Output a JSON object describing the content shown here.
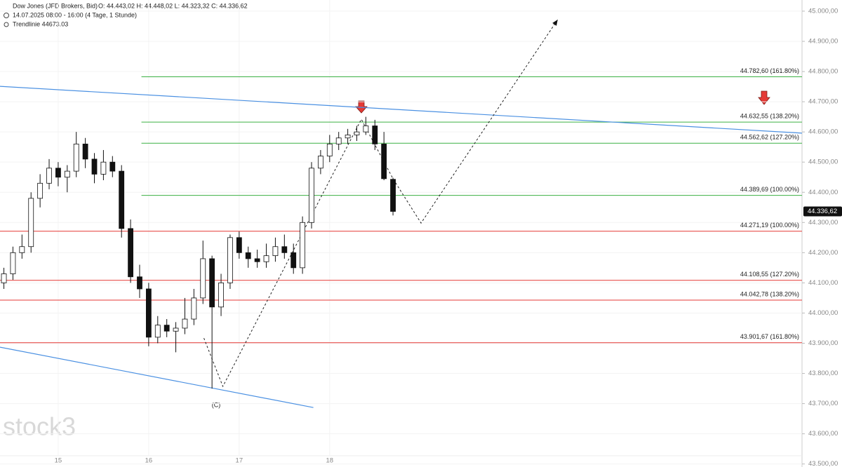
{
  "chart_data": {
    "type": "candlestick",
    "instrument": "Dow Jones (JFD Brokers, Bid)",
    "ohlc_text": "O: 44.443,02  H: 44.448,02  L: 44.323,32  C: 44.336,62",
    "range_text": "14.07.2025 08:00 - 16:00  (4 Tage, 1 Stunde)",
    "trendline_text": "Trendlinie  44673.03",
    "watermark": "stock3",
    "annotation": "(C)",
    "xlim": [
      14.357,
      23.22
    ],
    "xticks": [
      15,
      16,
      17,
      18
    ],
    "ylim": [
      43490,
      45037
    ],
    "yticks": [
      {
        "value": 45000,
        "label": "45.000,00"
      },
      {
        "value": 44900,
        "label": "44.900,00"
      },
      {
        "value": 44800,
        "label": "44.800,00"
      },
      {
        "value": 44700,
        "label": "44.700,00"
      },
      {
        "value": 44600,
        "label": "44.600,00"
      },
      {
        "value": 44500,
        "label": "44.500,00"
      },
      {
        "value": 44400,
        "label": "44.400,00"
      },
      {
        "value": 44300,
        "label": "44.300,00"
      },
      {
        "value": 44200,
        "label": "44.200,00"
      },
      {
        "value": 44100,
        "label": "44.100,00"
      },
      {
        "value": 44000,
        "label": "44.000,00"
      },
      {
        "value": 43900,
        "label": "43.900,00"
      },
      {
        "value": 43800,
        "label": "43.800,00"
      },
      {
        "value": 43700,
        "label": "43.700,00"
      },
      {
        "value": 43600,
        "label": "43.600,00"
      },
      {
        "value": 43500,
        "label": "43.500,00"
      }
    ],
    "x": [
      14.4,
      14.5,
      14.6,
      14.7,
      14.8,
      14.9,
      15.0,
      15.1,
      15.2,
      15.3,
      15.4,
      15.5,
      15.6,
      15.7,
      15.8,
      15.9,
      16.0,
      16.1,
      16.2,
      16.3,
      16.4,
      16.5,
      16.6,
      16.7,
      16.8,
      16.9,
      17.0,
      17.1,
      17.2,
      17.3,
      17.4,
      17.5,
      17.6,
      17.7,
      17.8,
      17.9,
      18.0,
      18.1,
      18.2,
      18.3,
      18.4,
      18.5,
      18.6,
      18.7
    ],
    "candles": [
      [
        44100,
        44150,
        44080,
        44130
      ],
      [
        44130,
        44220,
        44110,
        44200
      ],
      [
        44200,
        44260,
        44180,
        44220
      ],
      [
        44220,
        44400,
        44200,
        44380
      ],
      [
        44380,
        44460,
        44350,
        44430
      ],
      [
        44430,
        44510,
        44410,
        44480
      ],
      [
        44480,
        44500,
        44420,
        44450
      ],
      [
        44450,
        44490,
        44400,
        44470
      ],
      [
        44470,
        44600,
        44450,
        44560
      ],
      [
        44560,
        44580,
        44480,
        44510
      ],
      [
        44510,
        44530,
        44430,
        44460
      ],
      [
        44460,
        44540,
        44440,
        44500
      ],
      [
        44500,
        44520,
        44450,
        44470
      ],
      [
        44470,
        44490,
        44250,
        44280
      ],
      [
        44280,
        44310,
        44100,
        44120
      ],
      [
        44120,
        44160,
        44050,
        44080
      ],
      [
        44080,
        44100,
        43890,
        43920
      ],
      [
        43920,
        43990,
        43900,
        43960
      ],
      [
        43960,
        43980,
        43920,
        43940
      ],
      [
        43940,
        43970,
        43870,
        43950
      ],
      [
        43950,
        44050,
        43930,
        43980
      ],
      [
        43980,
        44080,
        43960,
        44050
      ],
      [
        44050,
        44240,
        44030,
        44180
      ],
      [
        44180,
        44190,
        43750,
        44020
      ],
      [
        44020,
        44130,
        43990,
        44100
      ],
      [
        44100,
        44260,
        44080,
        44250
      ],
      [
        44250,
        44270,
        44180,
        44200
      ],
      [
        44200,
        44220,
        44150,
        44180
      ],
      [
        44180,
        44210,
        44150,
        44170
      ],
      [
        44170,
        44230,
        44150,
        44190
      ],
      [
        44190,
        44250,
        44170,
        44220
      ],
      [
        44220,
        44260,
        44180,
        44200
      ],
      [
        44200,
        44230,
        44130,
        44150
      ],
      [
        44150,
        44320,
        44130,
        44300
      ],
      [
        44300,
        44500,
        44280,
        44480
      ],
      [
        44480,
        44540,
        44460,
        44520
      ],
      [
        44520,
        44590,
        44500,
        44560
      ],
      [
        44560,
        44600,
        44540,
        44580
      ],
      [
        44580,
        44610,
        44560,
        44590
      ],
      [
        44590,
        44620,
        44570,
        44600
      ],
      [
        44600,
        44650,
        44590,
        44620
      ],
      [
        44620,
        44640,
        44540,
        44560
      ],
      [
        44560,
        44600,
        44440,
        44445
      ],
      [
        44443.02,
        44448.02,
        44323.32,
        44336.62
      ]
    ],
    "levels": [
      {
        "value": 44782.6,
        "label": "44.782,60 (161.80%)",
        "color": "#3cb043",
        "x_start": 15.92
      },
      {
        "value": 44632.55,
        "label": "44.632,55 (138.20%)",
        "color": "#3cb043",
        "x_start": 15.92
      },
      {
        "value": 44562.62,
        "label": "44.562,62 (127.20%)",
        "color": "#3cb043",
        "x_start": 15.92
      },
      {
        "value": 44389.69,
        "label": "44.389,69 (100.00%)",
        "color": "#3cb043",
        "x_start": 15.92
      },
      {
        "value": 44271.19,
        "label": "44.271,19 (100.00%)",
        "color": "#e53935",
        "x_start": 14.357
      },
      {
        "value": 44108.55,
        "label": "44.108,55 (127.20%)",
        "color": "#e53935",
        "x_start": 14.357
      },
      {
        "value": 44042.78,
        "label": "44.042,78 (138.20%)",
        "color": "#e53935",
        "x_start": 14.357
      },
      {
        "value": 43901.67,
        "label": "43.901,67 (161.80%)",
        "color": "#e53935",
        "x_start": 14.357
      }
    ],
    "trendlines": [
      {
        "color": "#4a90e2",
        "x": [
          14.357,
          23.22
        ],
        "values": [
          44751,
          44596
        ]
      },
      {
        "color": "#4a90e2",
        "x": [
          14.357,
          17.82
        ],
        "values": [
          43887,
          43687
        ]
      }
    ],
    "projection": {
      "x": [
        16.61,
        16.82,
        18.35,
        18.7,
        19.01,
        20.52
      ],
      "values": [
        43917,
        43757,
        44642,
        44445,
        44298,
        44972
      ]
    },
    "current_price": {
      "value": 44336.62,
      "label": "44.336,62"
    }
  }
}
